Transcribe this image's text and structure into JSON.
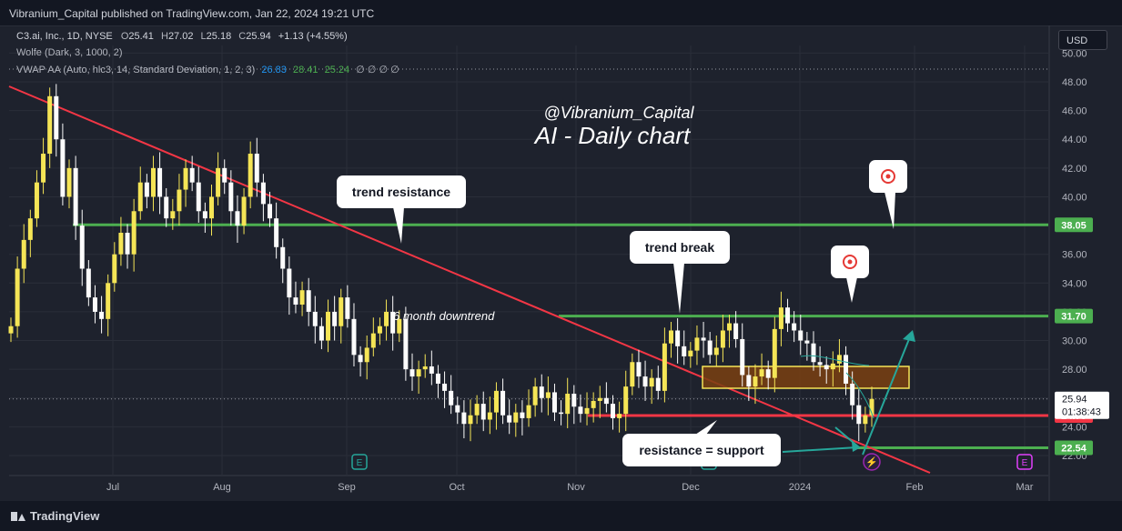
{
  "header": {
    "publisher": "Vibranium_Capital published on TradingView.com, Jan 22, 2024 19:21 UTC"
  },
  "legend": {
    "symbol": "C3.ai, Inc., 1D, NYSE",
    "o_label": "O",
    "o": "25.41",
    "h_label": "H",
    "h": "27.02",
    "l_label": "L",
    "l": "25.18",
    "c_label": "C",
    "c": "25.94",
    "change": "+1.13 (+4.55%)",
    "wolfe": "Wolfe (Dark, 3, 1000, 2)",
    "vwap": "VWAP AA (Auto, hlc3, 14, Standard Deviation, 1, 2, 3)",
    "vwap_v1": "26.83",
    "vwap_v2": "28.41",
    "vwap_v3": "25.24",
    "vwap_empty": "∅ ∅ ∅ ∅"
  },
  "currency_button": "USD",
  "footer": {
    "brand": "TradingView"
  },
  "colors": {
    "bg": "#1e222d",
    "up": "#f5e556",
    "down": "#fcfcfc",
    "green": "#4caf50",
    "red": "#f23645",
    "teal": "#26a69a",
    "orange_box": "#7a3f12",
    "box_border": "#f5e556"
  },
  "chart_data": {
    "type": "candlestick",
    "title": "AI - Daily chart",
    "watermark": "@Vibranium_Capital",
    "x_ticks": [
      "Jul",
      "Aug",
      "Sep",
      "Oct",
      "Nov",
      "Dec",
      "2024",
      "Feb",
      "Mar"
    ],
    "y_ticks": [
      "22.00",
      "24.00",
      "26.00",
      "28.00",
      "30.00",
      "32.00",
      "34.00",
      "36.00",
      "38.00",
      "40.00",
      "42.00",
      "44.00",
      "46.00",
      "48.00",
      "50.00"
    ],
    "ylim": [
      21.5,
      50.5
    ],
    "levels": [
      {
        "name": "resistance",
        "value": 38.05,
        "label": "38.05",
        "color": "#4caf50"
      },
      {
        "name": "target",
        "value": 31.7,
        "label": "31.70",
        "color": "#4caf50"
      },
      {
        "name": "support",
        "value": 24.78,
        "label": "24.78",
        "color": "#f23645"
      },
      {
        "name": "low",
        "value": 22.54,
        "label": "22.54",
        "color": "#4caf50"
      }
    ],
    "last_price": {
      "value": 25.94,
      "label": "25.94",
      "countdown": "01:38:43"
    },
    "annotations": [
      {
        "text": "trend resistance"
      },
      {
        "text": "trend break"
      },
      {
        "text": "6 month downtrend"
      },
      {
        "text": "resistance = support"
      }
    ],
    "ohlc_close": [
      31,
      35,
      37,
      38.5,
      41,
      43,
      47,
      44,
      40,
      42,
      38,
      35,
      33,
      32,
      31.5,
      34,
      36,
      37.5,
      36,
      39,
      41,
      40,
      42,
      40,
      38.5,
      39,
      40.5,
      42,
      41,
      39,
      38.5,
      40,
      42,
      41,
      39,
      38,
      40,
      43,
      41,
      39.5,
      38.5,
      36.5,
      35,
      33,
      32.5,
      33.5,
      32,
      31,
      30,
      32,
      31,
      33,
      31.5,
      29,
      28.5,
      29.5,
      30.5,
      31,
      32,
      30.5,
      31.5,
      28,
      27.5,
      28,
      28.2,
      27.7,
      27,
      26.5,
      25.5,
      25,
      24.2,
      24.8,
      25.6,
      24.5,
      25,
      26.5,
      24.8,
      24.3,
      25,
      24.6,
      25.5,
      26.8,
      26,
      26.4,
      25,
      24.9,
      26.3,
      25.4,
      24.9,
      25.3,
      25.8,
      26,
      25.6,
      24.6,
      24.9,
      26.8,
      28.5,
      27.5,
      26.8,
      27.4,
      26.5,
      29.8,
      30.7,
      29.6,
      28.9,
      29.3,
      30.2,
      30,
      29,
      29.5,
      30.7,
      31.2,
      30.1,
      27.6,
      26.8,
      27.5,
      28,
      27.4,
      30.8,
      32.3,
      31.2,
      30.7,
      30,
      29.8,
      28.5,
      28.3,
      28,
      28.4,
      29,
      27,
      25.5,
      24.2,
      24.8,
      25.94
    ]
  }
}
